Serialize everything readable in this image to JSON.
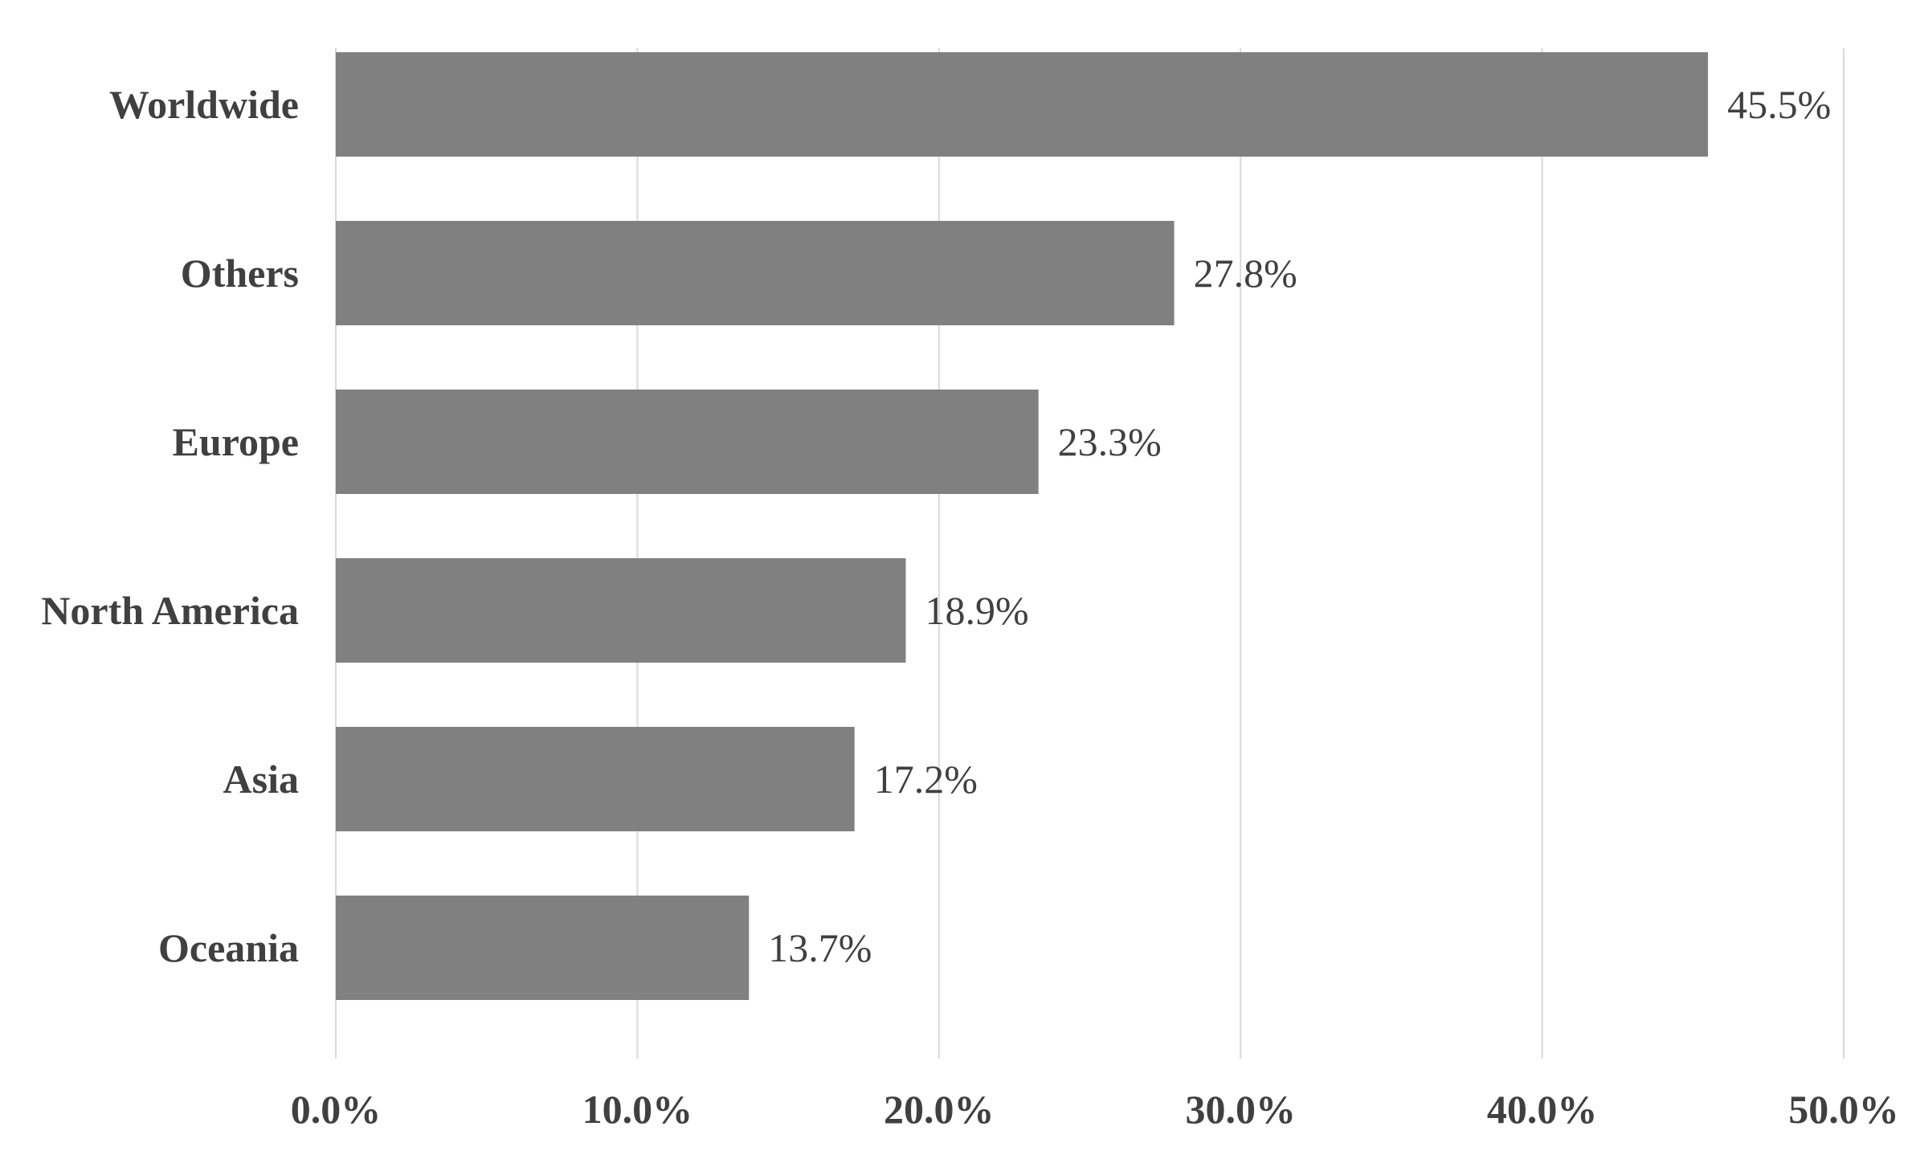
{
  "chart_data": {
    "type": "bar",
    "orientation": "horizontal",
    "categories": [
      "Worldwide",
      "Others",
      "Europe",
      "North America",
      "Asia",
      "Oceania"
    ],
    "values": [
      45.5,
      27.8,
      23.3,
      18.9,
      17.2,
      13.7
    ],
    "value_labels": [
      "45.5%",
      "27.8%",
      "23.3%",
      "18.9%",
      "17.2%",
      "13.7%"
    ],
    "xlim": [
      0,
      50
    ],
    "x_ticks": [
      0,
      10,
      20,
      30,
      40,
      50
    ],
    "x_tick_labels": [
      "0.0%",
      "10.0%",
      "20.0%",
      "30.0%",
      "40.0%",
      "50.0%"
    ],
    "grid": "vertical",
    "legend": "none",
    "colors": {
      "bar": "#808080",
      "grid": "#d9d9d9",
      "text": "#404040"
    }
  }
}
